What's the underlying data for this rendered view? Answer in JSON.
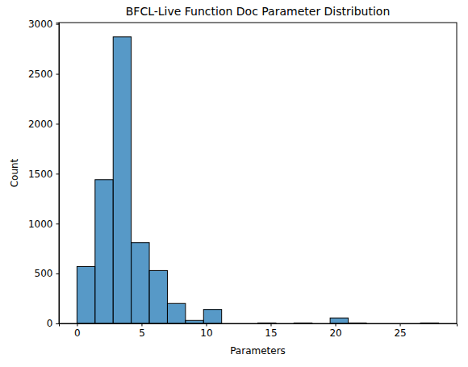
{
  "chart_data": {
    "type": "histogram",
    "title": "BFCL-Live Function Doc Parameter Distribution",
    "x_label": "Parameters",
    "y_label": "Count",
    "bins": [
      0,
      1.4,
      2.8,
      4.2,
      5.6,
      7,
      8.4,
      9.8,
      11.2,
      12.6,
      14,
      15.4,
      16.8,
      18.2,
      19.6,
      21,
      22.4,
      23.8,
      25.2,
      26.6,
      28
    ],
    "values": [
      570,
      1440,
      2870,
      810,
      530,
      200,
      30,
      140,
      0,
      0,
      5,
      0,
      5,
      0,
      55,
      5,
      0,
      0,
      0,
      5
    ],
    "color": "#1f77b4",
    "xlim": [
      -1.4,
      29.4
    ],
    "xticks": [
      0,
      5,
      10,
      15,
      20,
      25
    ],
    "ylim": [
      0,
      3013.5
    ],
    "yticks": [
      0,
      500,
      1000,
      1500,
      2000,
      2500,
      3000
    ],
    "grid": false
  }
}
